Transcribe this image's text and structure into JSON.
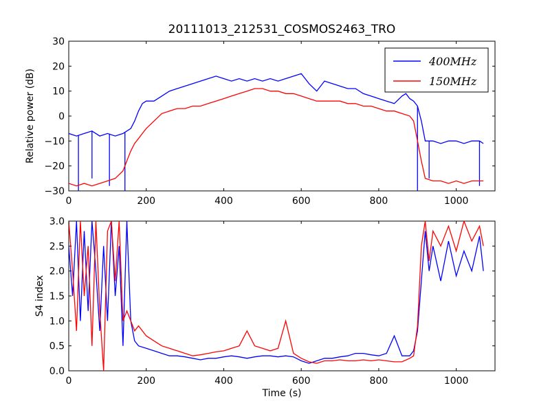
{
  "chart_data": [
    {
      "type": "line",
      "title": "20111013_212531_COSMOS2463_TRO",
      "xlabel": "",
      "ylabel": "Relative power (dB)",
      "xlim": [
        0,
        1100
      ],
      "ylim": [
        -30,
        30
      ],
      "xticks": [
        "0",
        "200",
        "400",
        "600",
        "800",
        "1000"
      ],
      "yticks": [
        "−30",
        "−20",
        "−10",
        "0",
        "10",
        "20",
        "30"
      ],
      "legend_position": "top-right",
      "legend": [
        "400MHz",
        "150MHz"
      ],
      "series": [
        {
          "name": "400MHz",
          "color": "#0000ff",
          "x": [
            0,
            20,
            40,
            60,
            80,
            100,
            120,
            140,
            150,
            160,
            170,
            180,
            190,
            200,
            220,
            240,
            260,
            280,
            300,
            320,
            340,
            360,
            380,
            400,
            420,
            440,
            460,
            480,
            500,
            520,
            540,
            560,
            580,
            600,
            620,
            640,
            660,
            680,
            700,
            720,
            740,
            760,
            780,
            800,
            820,
            840,
            860,
            870,
            880,
            890,
            900,
            910,
            920,
            940,
            960,
            980,
            1000,
            1020,
            1040,
            1060,
            1070
          ],
          "y": [
            -7,
            -8,
            -7,
            -6,
            -8,
            -7,
            -8,
            -7,
            -6,
            -5,
            -2,
            2,
            5,
            6,
            6,
            8,
            10,
            11,
            12,
            13,
            14,
            15,
            16,
            15,
            14,
            15,
            14,
            15,
            14,
            15,
            14,
            15,
            16,
            17,
            13,
            10,
            14,
            13,
            12,
            11,
            11,
            9,
            8,
            7,
            6,
            5,
            8,
            9,
            7,
            6,
            4,
            -2,
            -10,
            -10,
            -11,
            -10,
            -10,
            -11,
            -10,
            -10,
            -11
          ],
          "spikes": [
            [
              25,
              -30
            ],
            [
              60,
              -25
            ],
            [
              105,
              -28
            ],
            [
              145,
              -30
            ],
            [
              900,
              -30
            ],
            [
              930,
              -25
            ],
            [
              1060,
              -28
            ]
          ]
        },
        {
          "name": "150MHz",
          "color": "#ff0000",
          "x": [
            0,
            20,
            40,
            60,
            80,
            100,
            120,
            140,
            150,
            160,
            170,
            180,
            190,
            200,
            220,
            240,
            260,
            280,
            300,
            320,
            340,
            360,
            380,
            400,
            420,
            440,
            460,
            480,
            500,
            520,
            540,
            560,
            580,
            600,
            620,
            640,
            660,
            680,
            700,
            720,
            740,
            760,
            780,
            800,
            820,
            840,
            860,
            880,
            890,
            900,
            910,
            920,
            940,
            960,
            980,
            1000,
            1020,
            1040,
            1060,
            1070
          ],
          "y": [
            -27,
            -28,
            -27,
            -28,
            -27,
            -26,
            -25,
            -22,
            -18,
            -14,
            -11,
            -9,
            -7,
            -5,
            -2,
            1,
            2,
            3,
            3,
            4,
            4,
            5,
            6,
            7,
            8,
            9,
            10,
            11,
            11,
            10,
            10,
            9,
            9,
            8,
            7,
            6,
            6,
            6,
            6,
            5,
            5,
            4,
            4,
            3,
            2,
            2,
            1,
            0,
            -2,
            -10,
            -18,
            -25,
            -26,
            -26,
            -27,
            -26,
            -27,
            -26,
            -26,
            -26
          ]
        }
      ]
    },
    {
      "type": "line",
      "title": "",
      "xlabel": "Time (s)",
      "ylabel": "S4 index",
      "xlim": [
        0,
        1100
      ],
      "ylim": [
        0,
        3
      ],
      "xticks": [
        "0",
        "200",
        "400",
        "600",
        "800",
        "1000"
      ],
      "yticks": [
        "0.0",
        "0.5",
        "1.0",
        "1.5",
        "2.0",
        "2.5",
        "3.0"
      ],
      "series": [
        {
          "name": "400MHz",
          "color": "#0000ff",
          "x": [
            0,
            10,
            20,
            30,
            40,
            50,
            60,
            70,
            80,
            90,
            100,
            110,
            120,
            130,
            140,
            150,
            160,
            170,
            180,
            200,
            220,
            240,
            260,
            280,
            300,
            320,
            340,
            360,
            380,
            400,
            420,
            440,
            460,
            480,
            500,
            520,
            540,
            560,
            580,
            600,
            620,
            640,
            660,
            680,
            700,
            720,
            740,
            760,
            780,
            800,
            820,
            840,
            860,
            880,
            890,
            900,
            910,
            920,
            930,
            940,
            960,
            980,
            1000,
            1020,
            1040,
            1060,
            1070
          ],
          "y": [
            2.5,
            1.5,
            3.0,
            1.0,
            2.8,
            1.2,
            3.0,
            2.0,
            0.8,
            2.5,
            1.0,
            3.0,
            1.5,
            2.5,
            0.5,
            3.0,
            1.0,
            0.6,
            0.5,
            0.45,
            0.4,
            0.35,
            0.3,
            0.3,
            0.28,
            0.25,
            0.22,
            0.25,
            0.25,
            0.28,
            0.3,
            0.28,
            0.25,
            0.28,
            0.3,
            0.3,
            0.28,
            0.3,
            0.28,
            0.2,
            0.15,
            0.2,
            0.25,
            0.25,
            0.28,
            0.3,
            0.35,
            0.35,
            0.32,
            0.3,
            0.35,
            0.7,
            0.3,
            0.3,
            0.4,
            0.8,
            1.8,
            2.8,
            2.0,
            2.5,
            1.8,
            2.6,
            1.9,
            2.4,
            2.0,
            2.7,
            2.0
          ]
        },
        {
          "name": "150MHz",
          "color": "#ff0000",
          "x": [
            0,
            10,
            20,
            30,
            40,
            50,
            60,
            70,
            80,
            90,
            100,
            110,
            120,
            130,
            140,
            150,
            160,
            170,
            180,
            200,
            220,
            240,
            260,
            280,
            300,
            320,
            340,
            360,
            380,
            400,
            420,
            440,
            460,
            480,
            500,
            520,
            540,
            560,
            580,
            600,
            620,
            640,
            660,
            680,
            700,
            720,
            740,
            760,
            780,
            800,
            820,
            840,
            860,
            880,
            890,
            900,
            910,
            920,
            930,
            940,
            960,
            980,
            1000,
            1020,
            1040,
            1060,
            1070
          ],
          "y": [
            3.0,
            2.0,
            0.8,
            3.0,
            1.5,
            2.5,
            0.5,
            3.0,
            1.2,
            0.0,
            2.8,
            3.0,
            1.8,
            3.0,
            1.0,
            1.2,
            1.0,
            0.8,
            0.9,
            0.7,
            0.6,
            0.5,
            0.45,
            0.4,
            0.35,
            0.3,
            0.32,
            0.35,
            0.38,
            0.4,
            0.45,
            0.5,
            0.8,
            0.5,
            0.45,
            0.4,
            0.45,
            1.0,
            0.35,
            0.25,
            0.18,
            0.15,
            0.2,
            0.2,
            0.22,
            0.2,
            0.2,
            0.22,
            0.2,
            0.22,
            0.2,
            0.18,
            0.18,
            0.25,
            0.3,
            0.9,
            2.5,
            3.0,
            2.2,
            2.8,
            2.5,
            2.9,
            2.4,
            3.0,
            2.6,
            2.9,
            2.5
          ]
        }
      ]
    }
  ]
}
